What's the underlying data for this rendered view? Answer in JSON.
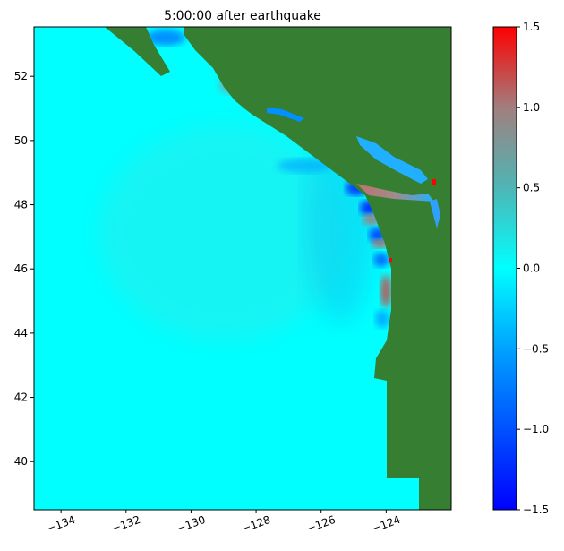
{
  "chart_data": {
    "type": "heatmap",
    "title": "5:00:00 after earthquake",
    "xlim": [
      -134.83,
      -122.0
    ],
    "ylim": [
      38.5,
      53.54
    ],
    "x_ticks": [
      -134,
      -132,
      -130,
      -128,
      -126,
      -124
    ],
    "x_tick_labels": [
      "−134",
      "−132",
      "−130",
      "−128",
      "−126",
      "−124"
    ],
    "y_ticks": [
      40,
      42,
      44,
      46,
      48,
      50,
      52
    ],
    "y_tick_labels": [
      "40",
      "42",
      "44",
      "46",
      "48",
      "50",
      "52"
    ],
    "colorbar": {
      "range": [
        -1.5,
        1.5
      ],
      "ticks": [
        1.5,
        1.0,
        0.5,
        0.0,
        -0.5,
        -1.0,
        -1.5
      ],
      "tick_labels": [
        "1.5",
        "1.0",
        "0.5",
        "0.0",
        "−0.5",
        "−1.0",
        "−1.5"
      ],
      "colors": [
        "#0000ff",
        "#00a0ff",
        "#00ffff",
        "#50b4b4",
        "#a08080",
        "#ff0000"
      ]
    },
    "land_color": "#367f32",
    "ocean_color": "#00ffff"
  }
}
